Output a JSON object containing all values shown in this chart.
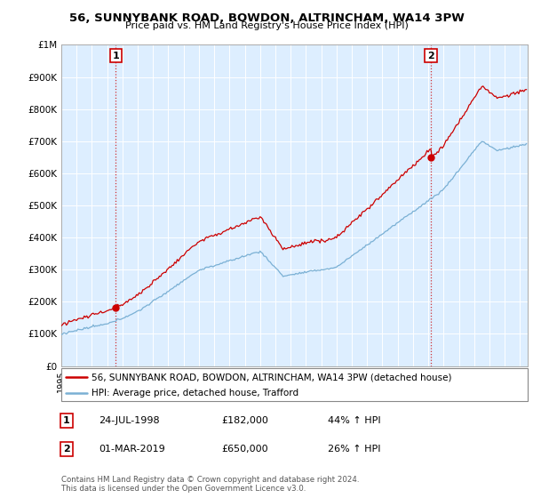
{
  "title": "56, SUNNYBANK ROAD, BOWDON, ALTRINCHAM, WA14 3PW",
  "subtitle": "Price paid vs. HM Land Registry's House Price Index (HPI)",
  "red_label": "56, SUNNYBANK ROAD, BOWDON, ALTRINCHAM, WA14 3PW (detached house)",
  "blue_label": "HPI: Average price, detached house, Trafford",
  "annotation1": {
    "num": "1",
    "date": "24-JUL-1998",
    "price": "£182,000",
    "change": "44% ↑ HPI"
  },
  "annotation2": {
    "num": "2",
    "date": "01-MAR-2019",
    "price": "£650,000",
    "change": "26% ↑ HPI"
  },
  "footer": "Contains HM Land Registry data © Crown copyright and database right 2024.\nThis data is licensed under the Open Government Licence v3.0.",
  "ylim": [
    0,
    1000000
  ],
  "yticks": [
    0,
    100000,
    200000,
    300000,
    400000,
    500000,
    600000,
    700000,
    800000,
    900000,
    1000000
  ],
  "ytick_labels": [
    "£0",
    "£100K",
    "£200K",
    "£300K",
    "£400K",
    "£500K",
    "£600K",
    "£700K",
    "£800K",
    "£900K",
    "£1M"
  ],
  "red_color": "#cc0000",
  "blue_color": "#7ab0d4",
  "chart_bg_color": "#ddeeff",
  "background_color": "#ffffff",
  "grid_color": "#ffffff",
  "sale1_x": 1998.56,
  "sale1_y": 182000,
  "sale2_x": 2019.17,
  "sale2_y": 650000,
  "xlim_start": 1995,
  "xlim_end": 2025.5
}
